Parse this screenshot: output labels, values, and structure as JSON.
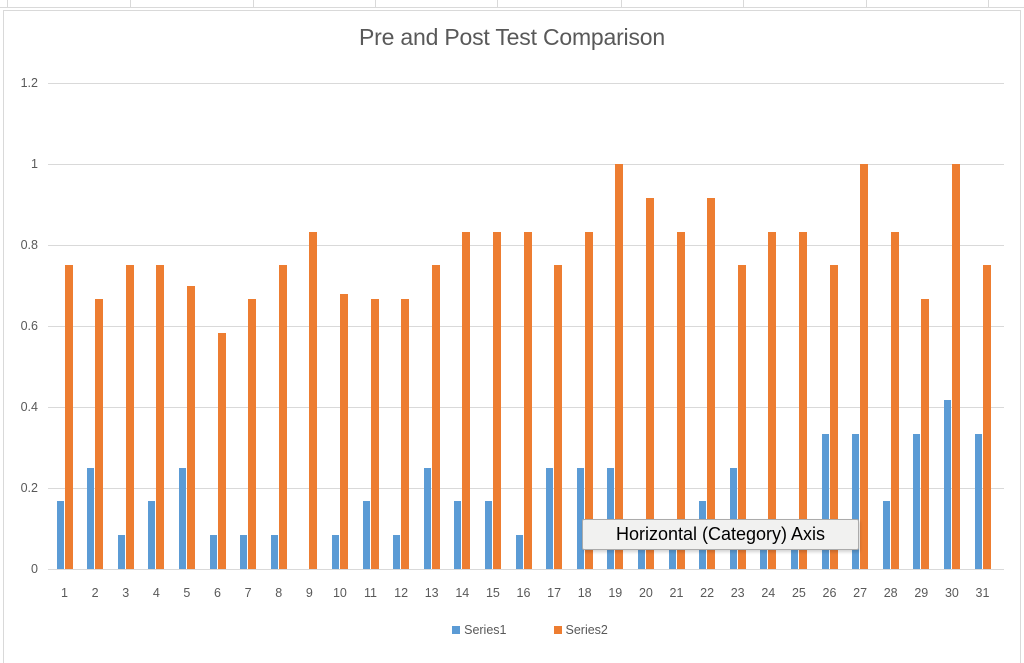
{
  "chart_data": {
    "type": "bar",
    "title": "Pre and Post Test Comparison",
    "categories": [
      "1",
      "2",
      "3",
      "4",
      "5",
      "6",
      "7",
      "8",
      "9",
      "10",
      "11",
      "12",
      "13",
      "14",
      "15",
      "16",
      "17",
      "18",
      "19",
      "20",
      "21",
      "22",
      "23",
      "24",
      "25",
      "26",
      "27",
      "28",
      "29",
      "30",
      "31"
    ],
    "series": [
      {
        "name": "Series1",
        "color": "#5B9BD5",
        "values": [
          0.167,
          0.25,
          0.083,
          0.167,
          0.25,
          0.083,
          0.083,
          0.083,
          0,
          0.083,
          0.167,
          0.083,
          0.25,
          0.167,
          0.167,
          0.083,
          0.25,
          0.25,
          0.25,
          0.083,
          0.083,
          0.167,
          0.25,
          0.083,
          0.083,
          0.333,
          0.333,
          0.167,
          0.333,
          0.417,
          0.333
        ]
      },
      {
        "name": "Series2",
        "color": "#ED7D31",
        "values": [
          0.75,
          0.667,
          0.75,
          0.75,
          0.7,
          0.583,
          0.667,
          0.75,
          0.833,
          0.68,
          0.667,
          0.667,
          0.75,
          0.833,
          0.833,
          0.833,
          0.75,
          0.833,
          1.0,
          0.917,
          0.833,
          0.917,
          0.75,
          0.833,
          0.833,
          0.75,
          1.0,
          0.833,
          0.667,
          1.0,
          0.75
        ]
      }
    ],
    "xlabel": "",
    "ylabel": "",
    "ylim": [
      0,
      1.2
    ],
    "ytick_labels": [
      "0",
      "0.2",
      "0.4",
      "0.6",
      "0.8",
      "1",
      "1.2"
    ],
    "grid": "horizontal",
    "gridline_color": "#D9D9D9",
    "axis_text_color": "#595959",
    "title_color": "#595959",
    "legend_position": "bottom"
  },
  "tooltip": {
    "text": "Horizontal (Category) Axis"
  }
}
